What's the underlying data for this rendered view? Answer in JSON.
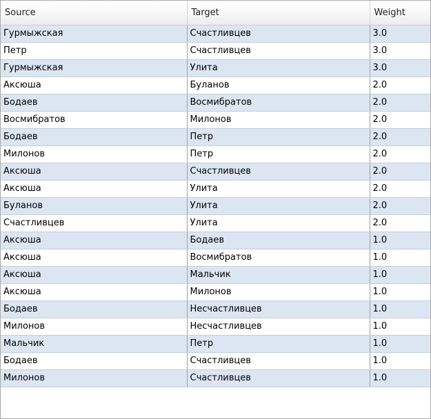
{
  "table": {
    "columns": [
      "Source",
      "Target",
      "Weight"
    ],
    "rows": [
      [
        "Гурмыжская",
        "Счастливцев",
        "3.0"
      ],
      [
        "Петр",
        "Счастливцев",
        "3.0"
      ],
      [
        "Гурмыжская",
        "Улита",
        "3.0"
      ],
      [
        "Аксюша",
        "Буланов",
        "2.0"
      ],
      [
        "Бодаев",
        "Восмибратов",
        "2.0"
      ],
      [
        "Восмибратов",
        "Милонов",
        "2.0"
      ],
      [
        "Бодаев",
        "Петр",
        "2.0"
      ],
      [
        "Милонов",
        "Петр",
        "2.0"
      ],
      [
        "Аксюша",
        "Счастливцев",
        "2.0"
      ],
      [
        "Аксюша",
        "Улита",
        "2.0"
      ],
      [
        "Буланов",
        "Улита",
        "2.0"
      ],
      [
        "Счастливцев",
        "Улита",
        "2.0"
      ],
      [
        "Аксюша",
        "Бодаев",
        "1.0"
      ],
      [
        "Аксюша",
        "Восмибратов",
        "1.0"
      ],
      [
        "Аксюша",
        "Мальчик",
        "1.0"
      ],
      [
        "Аксюша",
        "Милонов",
        "1.0"
      ],
      [
        "Бодаев",
        "Несчастливцев",
        "1.0"
      ],
      [
        "Милонов",
        "Несчастливцев",
        "1.0"
      ],
      [
        "Мальчик",
        "Петр",
        "1.0"
      ],
      [
        "Бодаев",
        "Счастливцев",
        "1.0"
      ],
      [
        "Милонов",
        "Счастливцев",
        "1.0"
      ]
    ]
  }
}
